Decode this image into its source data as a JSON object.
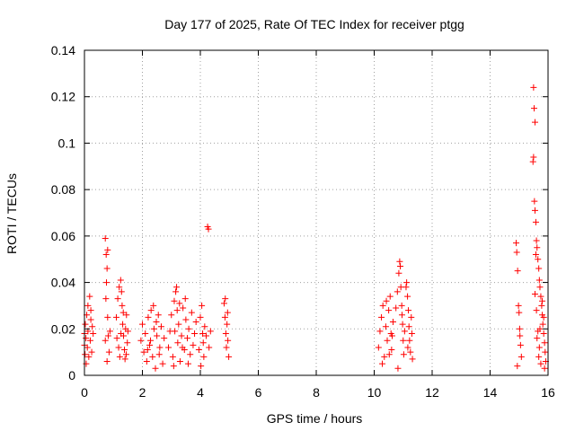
{
  "chart_data": {
    "type": "scatter",
    "title": "Day 177 of 2025, Rate Of TEC Index for receiver ptgg",
    "xlabel": "GPS time / hours",
    "ylabel": "ROTI / TECUs",
    "xlim": [
      0,
      16
    ],
    "ylim": [
      0,
      0.14
    ],
    "grid": true,
    "marker": "+",
    "color": "#ff0000",
    "x_ticks": [
      {
        "value": 0,
        "label": "0"
      },
      {
        "value": 2,
        "label": "2"
      },
      {
        "value": 4,
        "label": "4"
      },
      {
        "value": 6,
        "label": "6"
      },
      {
        "value": 8,
        "label": "8"
      },
      {
        "value": 10,
        "label": "10"
      },
      {
        "value": 12,
        "label": "12"
      },
      {
        "value": 14,
        "label": "14"
      },
      {
        "value": 16,
        "label": "16"
      }
    ],
    "y_ticks": [
      {
        "value": 0,
        "label": "0"
      },
      {
        "value": 0.02,
        "label": "0.02"
      },
      {
        "value": 0.04,
        "label": "0.04"
      },
      {
        "value": 0.06,
        "label": "0.06"
      },
      {
        "value": 0.08,
        "label": "0.08"
      },
      {
        "value": 0.1,
        "label": "0.1"
      },
      {
        "value": 0.12,
        "label": "0.12"
      },
      {
        "value": 0.14,
        "label": "0.14"
      }
    ],
    "series": [
      {
        "name": "ROTI",
        "points": [
          [
            0.0,
            0.018
          ],
          [
            0.0,
            0.013
          ],
          [
            0.02,
            0.009
          ],
          [
            0.03,
            0.022
          ],
          [
            0.05,
            0.016
          ],
          [
            0.06,
            0.005
          ],
          [
            0.08,
            0.026
          ],
          [
            0.1,
            0.012
          ],
          [
            0.12,
            0.019
          ],
          [
            0.15,
            0.008
          ],
          [
            0.18,
            0.034
          ],
          [
            0.2,
            0.015
          ],
          [
            0.22,
            0.028
          ],
          [
            0.25,
            0.01
          ],
          [
            0.27,
            0.021
          ],
          [
            0.3,
            0.018
          ],
          [
            0.12,
            0.03
          ],
          [
            0.22,
            0.024
          ],
          [
            0.72,
            0.059
          ],
          [
            0.75,
            0.052
          ],
          [
            0.78,
            0.046
          ],
          [
            0.8,
            0.054
          ],
          [
            0.76,
            0.04
          ],
          [
            0.74,
            0.033
          ],
          [
            0.8,
            0.025
          ],
          [
            0.82,
            0.017
          ],
          [
            0.85,
            0.01
          ],
          [
            0.78,
            0.006
          ],
          [
            0.88,
            0.019
          ],
          [
            0.72,
            0.015
          ],
          [
            1.1,
            0.025
          ],
          [
            1.15,
            0.033
          ],
          [
            1.2,
            0.038
          ],
          [
            1.25,
            0.041
          ],
          [
            1.28,
            0.036
          ],
          [
            1.3,
            0.03
          ],
          [
            1.32,
            0.022
          ],
          [
            1.35,
            0.017
          ],
          [
            1.38,
            0.011
          ],
          [
            1.4,
            0.007
          ],
          [
            1.42,
            0.02
          ],
          [
            1.45,
            0.026
          ],
          [
            1.48,
            0.014
          ],
          [
            1.5,
            0.019
          ],
          [
            1.18,
            0.012
          ],
          [
            1.22,
            0.008
          ],
          [
            1.26,
            0.018
          ],
          [
            1.34,
            0.027
          ],
          [
            1.44,
            0.009
          ],
          [
            1.12,
            0.016
          ],
          [
            1.95,
            0.015
          ],
          [
            2.0,
            0.022
          ],
          [
            2.05,
            0.01
          ],
          [
            2.1,
            0.018
          ],
          [
            2.15,
            0.006
          ],
          [
            2.2,
            0.025
          ],
          [
            2.25,
            0.013
          ],
          [
            2.3,
            0.028
          ],
          [
            2.35,
            0.008
          ],
          [
            2.4,
            0.02
          ],
          [
            2.45,
            0.003
          ],
          [
            2.5,
            0.017
          ],
          [
            2.55,
            0.026
          ],
          [
            2.6,
            0.012
          ],
          [
            2.65,
            0.021
          ],
          [
            2.7,
            0.005
          ],
          [
            2.75,
            0.016
          ],
          [
            2.38,
            0.03
          ],
          [
            2.48,
            0.023
          ],
          [
            2.58,
            0.009
          ],
          [
            2.28,
            0.015
          ],
          [
            2.18,
            0.011
          ],
          [
            2.9,
            0.012
          ],
          [
            2.95,
            0.019
          ],
          [
            3.0,
            0.026
          ],
          [
            3.05,
            0.008
          ],
          [
            3.1,
            0.032
          ],
          [
            3.15,
            0.036
          ],
          [
            3.18,
            0.038
          ],
          [
            3.2,
            0.028
          ],
          [
            3.22,
            0.014
          ],
          [
            3.25,
            0.022
          ],
          [
            3.3,
            0.006
          ],
          [
            3.35,
            0.017
          ],
          [
            3.4,
            0.029
          ],
          [
            3.45,
            0.011
          ],
          [
            3.5,
            0.024
          ],
          [
            3.55,
            0.016
          ],
          [
            3.6,
            0.02
          ],
          [
            3.65,
            0.009
          ],
          [
            3.7,
            0.027
          ],
          [
            3.75,
            0.013
          ],
          [
            3.8,
            0.018
          ],
          [
            3.85,
            0.023
          ],
          [
            3.08,
            0.004
          ],
          [
            3.28,
            0.031
          ],
          [
            3.48,
            0.033
          ],
          [
            3.58,
            0.005
          ],
          [
            3.12,
            0.019
          ],
          [
            3.38,
            0.012
          ],
          [
            3.95,
            0.011
          ],
          [
            4.0,
            0.025
          ],
          [
            4.05,
            0.03
          ],
          [
            4.08,
            0.018
          ],
          [
            4.1,
            0.014
          ],
          [
            4.12,
            0.008
          ],
          [
            4.15,
            0.021
          ],
          [
            4.2,
            0.017
          ],
          [
            4.25,
            0.064
          ],
          [
            4.28,
            0.063
          ],
          [
            4.3,
            0.012
          ],
          [
            4.35,
            0.019
          ],
          [
            4.02,
            0.004
          ],
          [
            4.82,
            0.031
          ],
          [
            4.85,
            0.025
          ],
          [
            4.88,
            0.018
          ],
          [
            4.9,
            0.012
          ],
          [
            4.92,
            0.022
          ],
          [
            4.95,
            0.015
          ],
          [
            4.98,
            0.008
          ],
          [
            4.86,
            0.033
          ],
          [
            4.94,
            0.027
          ],
          [
            10.15,
            0.012
          ],
          [
            10.2,
            0.019
          ],
          [
            10.25,
            0.025
          ],
          [
            10.3,
            0.03
          ],
          [
            10.35,
            0.008
          ],
          [
            10.4,
            0.021
          ],
          [
            10.45,
            0.015
          ],
          [
            10.5,
            0.028
          ],
          [
            10.55,
            0.034
          ],
          [
            10.6,
            0.011
          ],
          [
            10.62,
            0.017
          ],
          [
            10.65,
            0.023
          ],
          [
            10.28,
            0.005
          ],
          [
            10.42,
            0.032
          ],
          [
            10.52,
            0.009
          ],
          [
            10.58,
            0.018
          ],
          [
            10.75,
            0.029
          ],
          [
            10.8,
            0.036
          ],
          [
            10.85,
            0.044
          ],
          [
            10.88,
            0.049
          ],
          [
            10.9,
            0.047
          ],
          [
            10.92,
            0.038
          ],
          [
            10.95,
            0.03
          ],
          [
            10.98,
            0.022
          ],
          [
            11.0,
            0.015
          ],
          [
            11.02,
            0.009
          ],
          [
            11.05,
            0.019
          ],
          [
            10.82,
            0.003
          ],
          [
            10.96,
            0.026
          ],
          [
            11.1,
            0.038
          ],
          [
            11.12,
            0.04
          ],
          [
            11.15,
            0.034
          ],
          [
            11.18,
            0.028
          ],
          [
            11.2,
            0.021
          ],
          [
            11.22,
            0.015
          ],
          [
            11.25,
            0.01
          ],
          [
            11.28,
            0.025
          ],
          [
            11.3,
            0.018
          ],
          [
            11.32,
            0.007
          ],
          [
            11.16,
            0.012
          ],
          [
            14.9,
            0.057
          ],
          [
            14.92,
            0.053
          ],
          [
            14.95,
            0.045
          ],
          [
            14.98,
            0.03
          ],
          [
            15.0,
            0.027
          ],
          [
            15.02,
            0.02
          ],
          [
            15.05,
            0.013
          ],
          [
            15.08,
            0.008
          ],
          [
            14.94,
            0.004
          ],
          [
            15.03,
            0.017
          ],
          [
            15.5,
            0.124
          ],
          [
            15.52,
            0.115
          ],
          [
            15.55,
            0.109
          ],
          [
            15.48,
            0.092
          ],
          [
            15.5,
            0.094
          ],
          [
            15.53,
            0.075
          ],
          [
            15.55,
            0.071
          ],
          [
            15.58,
            0.066
          ],
          [
            15.6,
            0.058
          ],
          [
            15.62,
            0.055
          ],
          [
            15.65,
            0.05
          ],
          [
            15.68,
            0.046
          ],
          [
            15.7,
            0.041
          ],
          [
            15.72,
            0.038
          ],
          [
            15.75,
            0.034
          ],
          [
            15.78,
            0.03
          ],
          [
            15.8,
            0.026
          ],
          [
            15.82,
            0.022
          ],
          [
            15.85,
            0.018
          ],
          [
            15.88,
            0.014
          ],
          [
            15.9,
            0.01
          ],
          [
            15.92,
            0.006
          ],
          [
            15.55,
            0.035
          ],
          [
            15.6,
            0.028
          ],
          [
            15.65,
            0.019
          ],
          [
            15.7,
            0.012
          ],
          [
            15.75,
            0.005
          ],
          [
            15.8,
            0.032
          ],
          [
            15.85,
            0.025
          ],
          [
            15.62,
            0.016
          ],
          [
            15.68,
            0.008
          ],
          [
            15.58,
            0.052
          ],
          [
            15.72,
            0.02
          ],
          [
            15.88,
            0.003
          ]
        ]
      }
    ]
  }
}
